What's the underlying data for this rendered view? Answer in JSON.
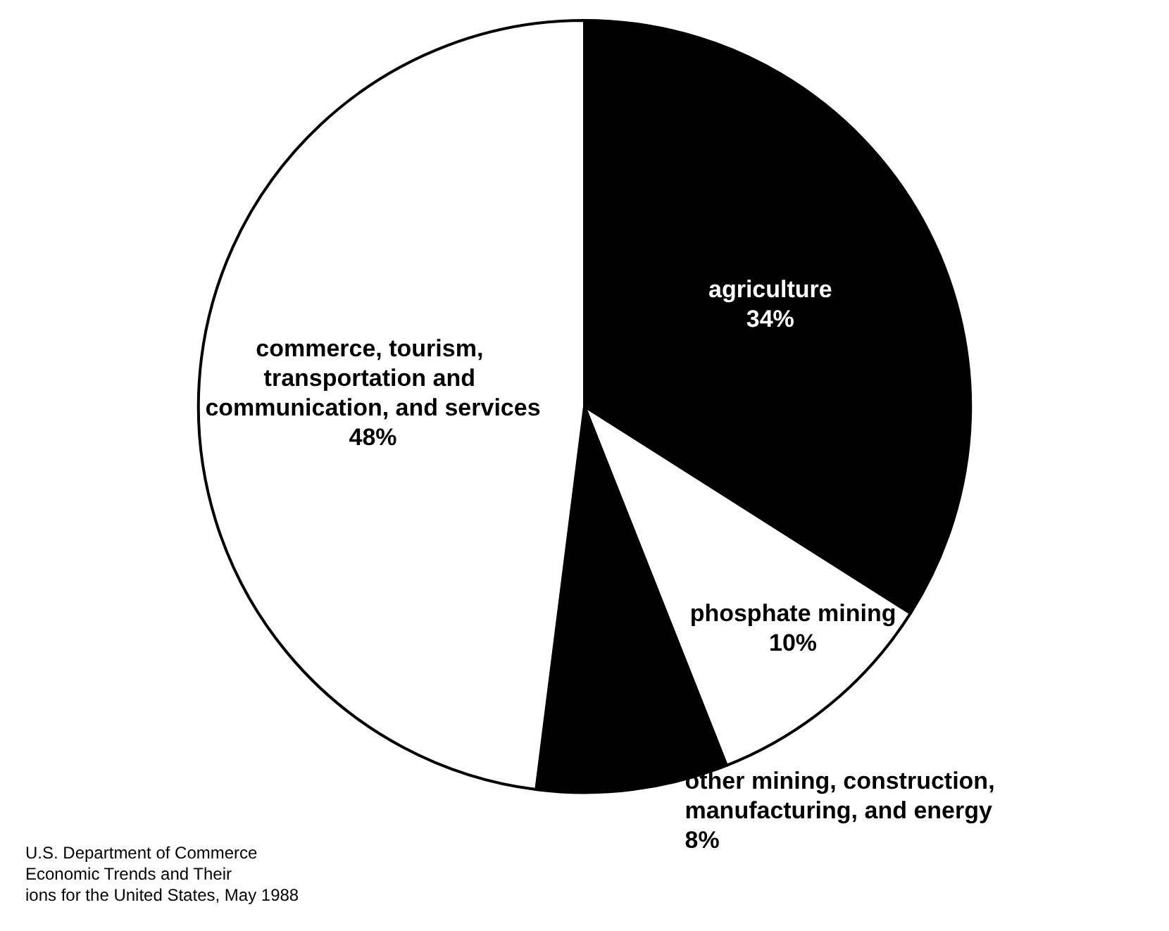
{
  "chart_data": {
    "type": "pie",
    "categories": [
      "agriculture",
      "phosphate mining",
      "other mining, construction, manufacturing, and energy",
      "commerce, tourism, transportation and communication, and services"
    ],
    "values": [
      34,
      10,
      8,
      48
    ],
    "value_labels": [
      "34%",
      "10%",
      "8%",
      "48%"
    ],
    "colors": [
      "#000000",
      "#ffffff",
      "#000000",
      "#ffffff"
    ],
    "legend": false,
    "annotations": [
      "U.S. Department of Commerce\nEconomic Trends and Their\nions for the United States, May 1988"
    ]
  }
}
